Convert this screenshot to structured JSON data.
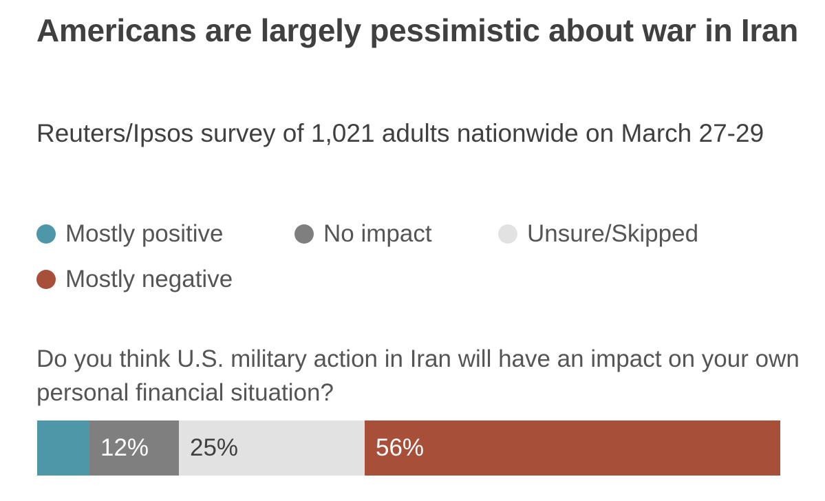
{
  "chart_data": {
    "type": "bar",
    "orientation": "horizontal-stacked-100",
    "title": "Americans are largely pessimistic about war in Iran",
    "subtitle": "Reuters/Ipsos survey of 1,021 adults nationwide on March 27-29",
    "question": "Do you think U.S. military action in Iran will have an impact on your own personal financial situation?",
    "legend": [
      {
        "name": "Mostly positive",
        "color": "#4e97a8"
      },
      {
        "name": "No impact",
        "color": "#7f7f7f"
      },
      {
        "name": "Unsure/Skipped",
        "color": "#e2e2e2"
      },
      {
        "name": "Mostly negative",
        "color": "#a84f3a"
      }
    ],
    "series": [
      {
        "name": "Mostly positive",
        "value": 7,
        "label": "",
        "color": "#4e97a8",
        "text_color": "#ffffff"
      },
      {
        "name": "No impact",
        "value": 12,
        "label": "12%",
        "color": "#7f7f7f",
        "text_color": "#ffffff"
      },
      {
        "name": "Unsure/Skipped",
        "value": 25,
        "label": "25%",
        "color": "#e2e2e2",
        "text_color": "#404040"
      },
      {
        "name": "Mostly negative",
        "value": 56,
        "label": "56%",
        "color": "#a84f3a",
        "text_color": "#ffffff"
      }
    ],
    "total": 100
  }
}
